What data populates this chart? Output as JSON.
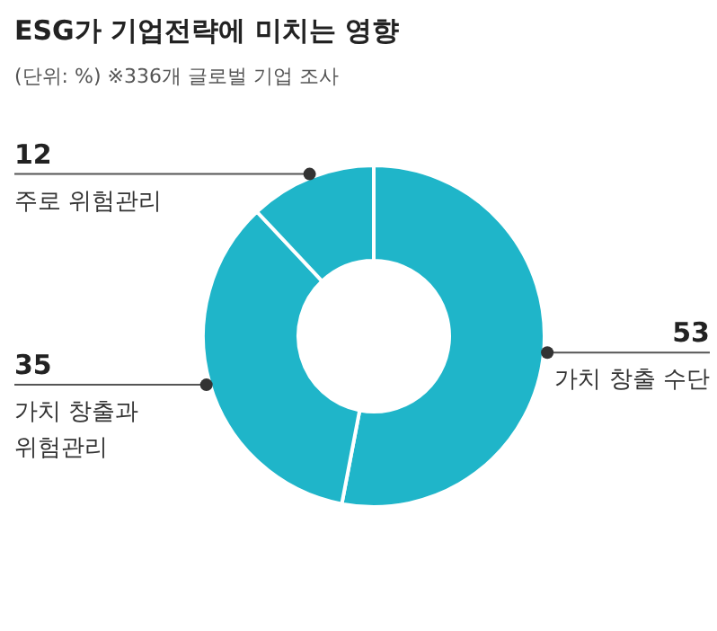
{
  "chart_data": {
    "type": "donut",
    "title": "ESG가 기업전략에 미치는 영향",
    "subtitle": "(단위: %)  ※336개 글로벌 기업 조사",
    "categories": [
      "가치 창출 수단",
      "가치 창출과 위험관리",
      "주로 위험관리"
    ],
    "values": [
      53,
      35,
      12
    ],
    "colors": [
      "#1fb5c9",
      "#1fb5c9",
      "#1fb5c9"
    ],
    "data_labels": true
  }
}
